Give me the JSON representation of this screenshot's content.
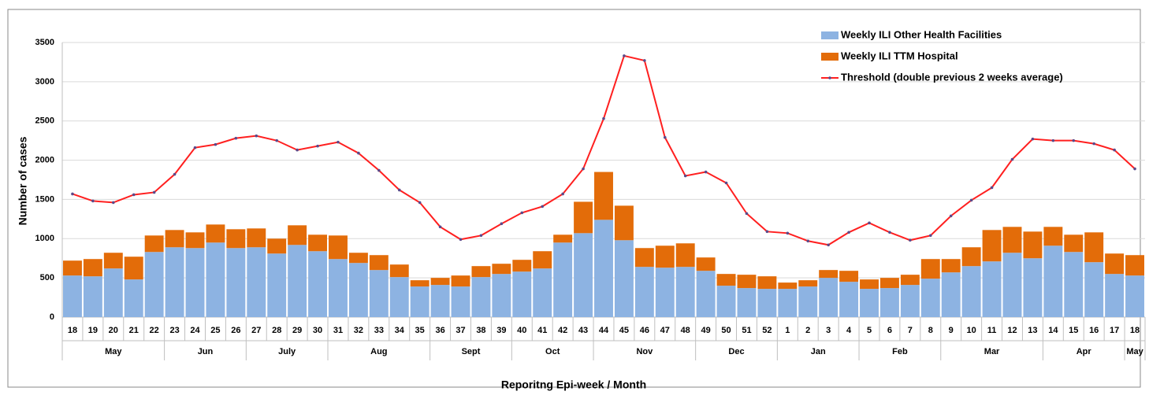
{
  "chart_data": {
    "type": "bar",
    "stacked": true,
    "x_label": "Reporitng Epi-week / Month",
    "y_label": "Number of cases",
    "categories": [
      "18",
      "19",
      "20",
      "21",
      "22",
      "23",
      "24",
      "25",
      "26",
      "27",
      "28",
      "29",
      "30",
      "31",
      "32",
      "33",
      "34",
      "35",
      "36",
      "37",
      "38",
      "39",
      "40",
      "41",
      "42",
      "43",
      "44",
      "45",
      "46",
      "47",
      "48",
      "49",
      "50",
      "51",
      "52",
      "1",
      "2",
      "3",
      "4",
      "5",
      "6",
      "7",
      "8",
      "9",
      "10",
      "11",
      "12",
      "13",
      "14",
      "15",
      "16",
      "17",
      "18"
    ],
    "months": [
      "May",
      "May",
      "May",
      "May",
      "May",
      "Jun",
      "Jun",
      "Jun",
      "Jun",
      "July",
      "July",
      "July",
      "July",
      "Aug",
      "Aug",
      "Aug",
      "Aug",
      "Aug",
      "Sept",
      "Sept",
      "Sept",
      "Sept",
      "Oct",
      "Oct",
      "Oct",
      "Oct",
      "Nov",
      "Nov",
      "Nov",
      "Nov",
      "Nov",
      "Dec",
      "Dec",
      "Dec",
      "Dec",
      "Jan",
      "Jan",
      "Jan",
      "Jan",
      "Feb",
      "Feb",
      "Feb",
      "Feb",
      "Mar",
      "Mar",
      "Mar",
      "Mar",
      "Mar",
      "Apr",
      "Apr",
      "Apr",
      "Apr",
      "May"
    ],
    "series": [
      {
        "name": "Weekly ILI Other Health Facilities",
        "type": "bar",
        "color": "#8db3e2",
        "values": [
          530,
          520,
          620,
          480,
          830,
          890,
          880,
          950,
          880,
          890,
          810,
          920,
          840,
          740,
          690,
          600,
          510,
          390,
          410,
          390,
          510,
          550,
          580,
          620,
          950,
          1070,
          1240,
          980,
          640,
          630,
          640,
          590,
          400,
          370,
          360,
          360,
          390,
          500,
          450,
          360,
          370,
          410,
          490,
          570,
          650,
          710,
          820,
          750,
          910,
          830,
          700,
          550,
          530
        ]
      },
      {
        "name": "Weekly ILI TTM Hospital",
        "type": "bar",
        "color": "#e36c09",
        "values": [
          190,
          220,
          200,
          290,
          210,
          220,
          200,
          230,
          240,
          240,
          190,
          250,
          210,
          300,
          130,
          190,
          160,
          80,
          90,
          140,
          140,
          130,
          150,
          220,
          100,
          400,
          610,
          440,
          240,
          280,
          300,
          170,
          150,
          170,
          160,
          80,
          80,
          100,
          140,
          120,
          130,
          130,
          250,
          170,
          240,
          400,
          330,
          340,
          240,
          220,
          380,
          260,
          260
        ]
      },
      {
        "name": "Threshold (double previous 2 weeks average)",
        "type": "line",
        "color": "#ff1f1f",
        "marker_color": "#5a4a8a",
        "values": [
          1570,
          1480,
          1460,
          1560,
          1590,
          1820,
          2160,
          2200,
          2280,
          2310,
          2250,
          2130,
          2180,
          2230,
          2090,
          1870,
          1620,
          1460,
          1150,
          990,
          1040,
          1190,
          1330,
          1410,
          1570,
          1890,
          2530,
          3330,
          3270,
          2290,
          1800,
          1850,
          1710,
          1320,
          1090,
          1070,
          970,
          920,
          1080,
          1200,
          1080,
          980,
          1040,
          1290,
          1490,
          1650,
          2010,
          2270,
          2250,
          2250,
          2210,
          2130,
          1890
        ]
      }
    ],
    "ylim": [
      0,
      3500
    ],
    "yticks": [
      0,
      500,
      1000,
      1500,
      2000,
      2500,
      3000,
      3500
    ],
    "grid": true,
    "legend": "top-right"
  }
}
